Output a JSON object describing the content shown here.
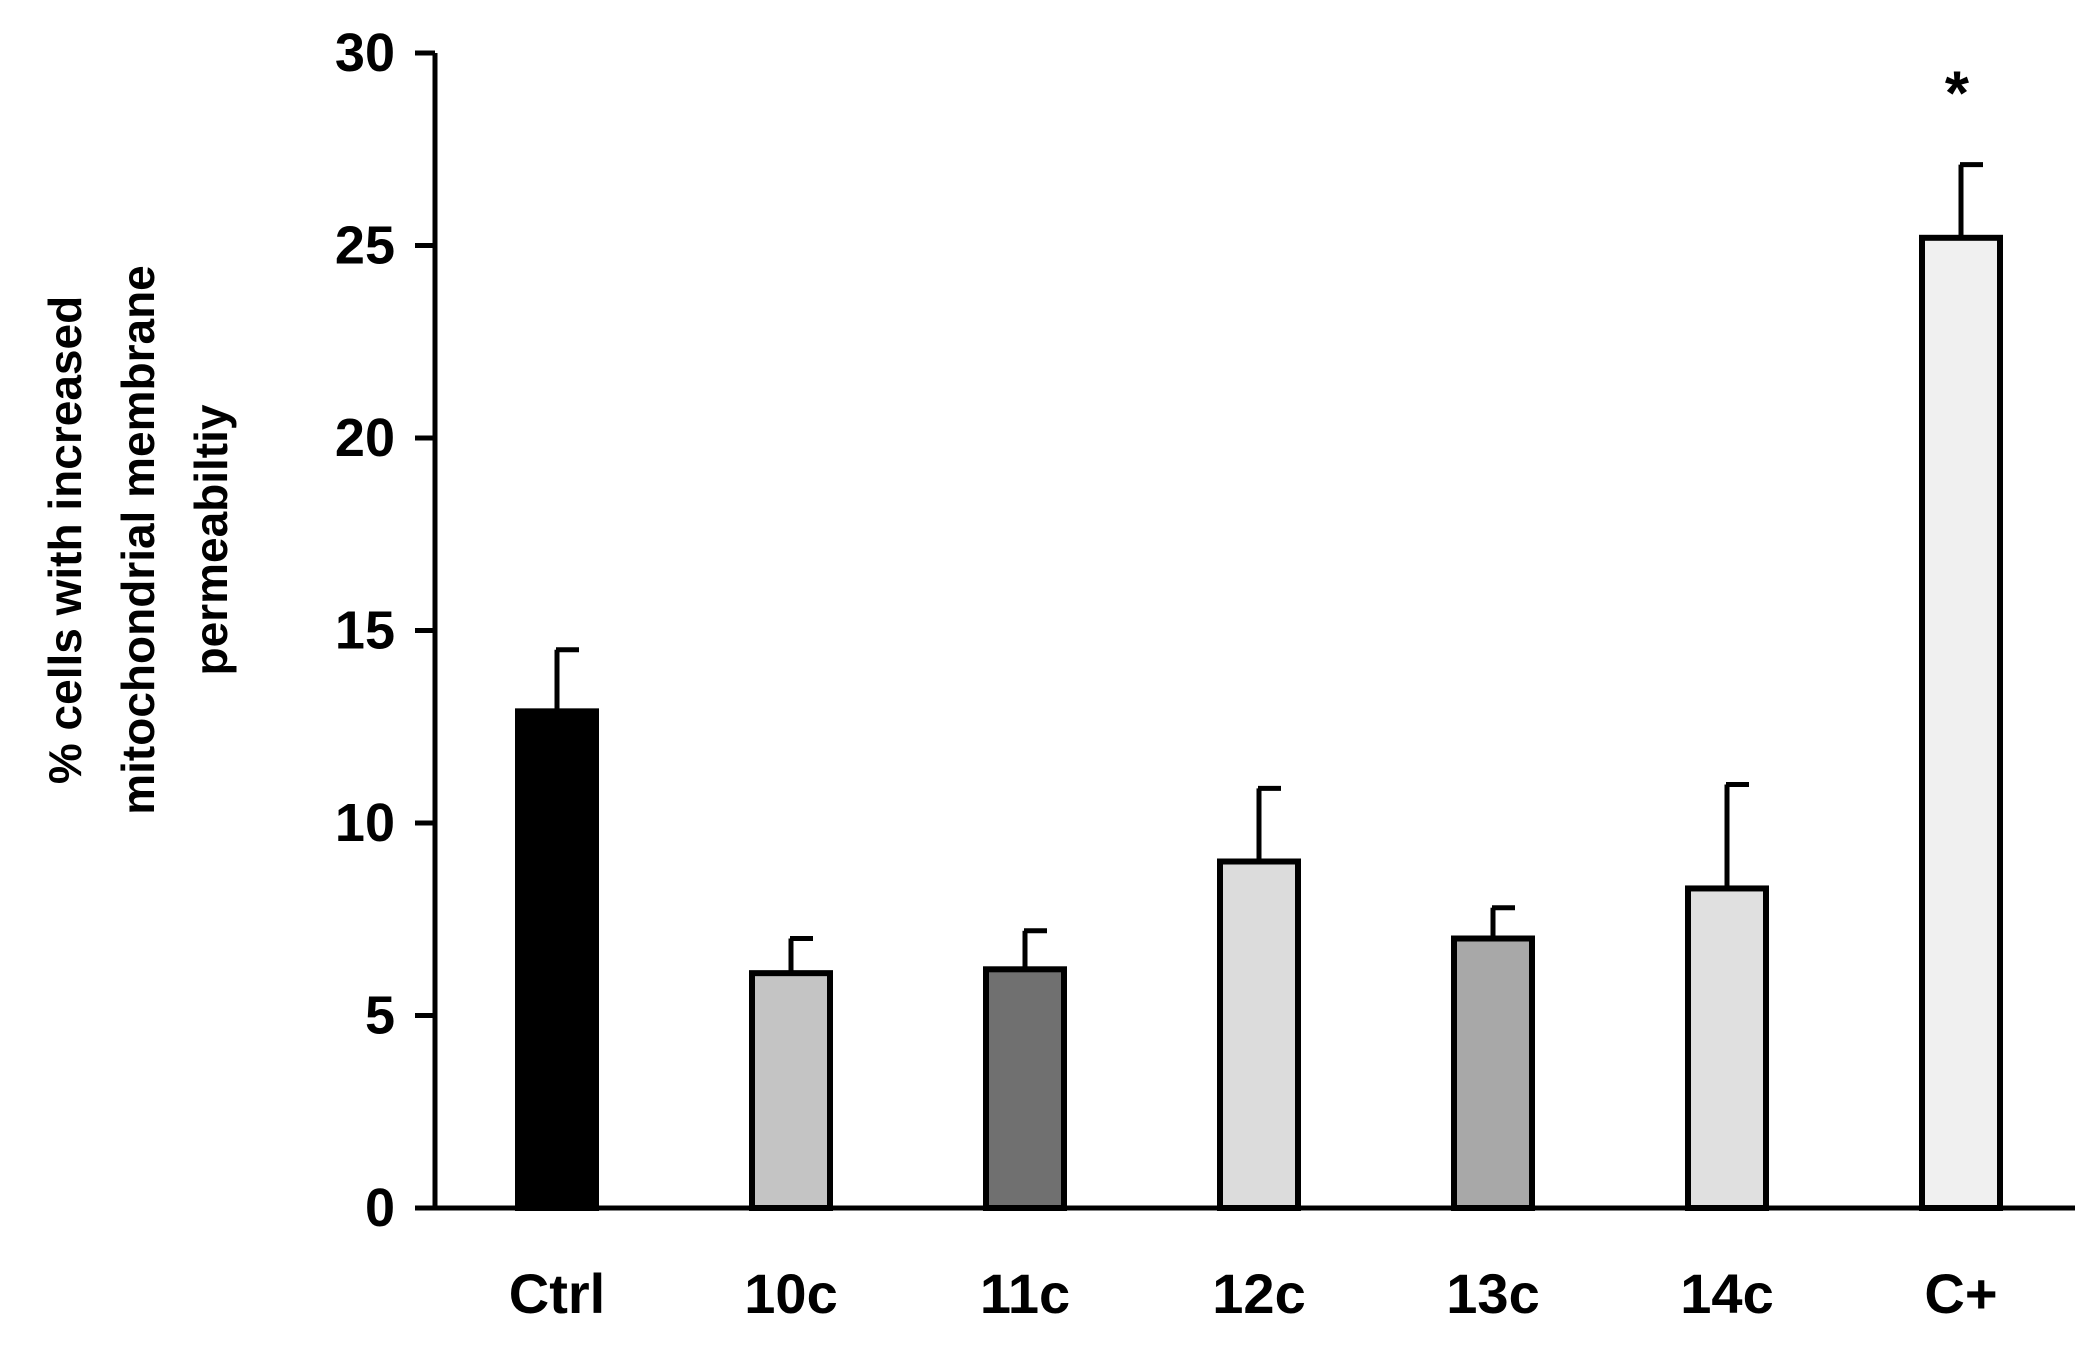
{
  "chart_data": {
    "type": "bar",
    "title": "",
    "xlabel": "",
    "ylabel_lines": [
      "% cells with increased",
      "mitochondrial membrane",
      "permeabiltiy"
    ],
    "categories": [
      "Ctrl",
      "10c",
      "11c",
      "12c",
      "13c",
      "14c",
      "C+"
    ],
    "values": [
      12.9,
      6.1,
      6.2,
      9.0,
      7.0,
      8.3,
      25.2
    ],
    "errors": [
      1.6,
      0.9,
      1.0,
      1.9,
      0.8,
      2.7,
      1.9
    ],
    "bar_colors": [
      "#000000",
      "#c4c4c4",
      "#707070",
      "#dcdcdc",
      "#a8a8a8",
      "#e0e0e0",
      "#f0f0f0"
    ],
    "annotations": [
      {
        "category": "C+",
        "text": "*"
      }
    ],
    "ylim": [
      0,
      30
    ],
    "yticks": [
      0,
      5,
      10,
      15,
      20,
      25,
      30
    ],
    "grid": false,
    "legend": "none"
  }
}
